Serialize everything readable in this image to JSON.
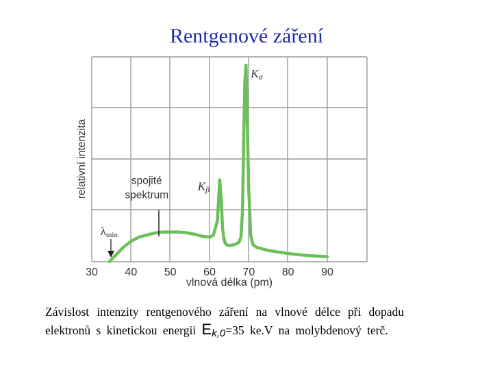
{
  "title": "Rentgenové záření",
  "chart_data": {
    "type": "line",
    "xlabel": "vlnová délka (pm)",
    "ylabel": "relativní intenzita",
    "xlim": [
      30,
      100
    ],
    "ylim": [
      0,
      100
    ],
    "xticks": [
      30,
      40,
      50,
      60,
      70,
      80,
      90
    ],
    "grid": true,
    "color": "#6cbf5a",
    "series": [
      {
        "x": [
          34.5,
          36,
          38,
          40,
          42,
          44,
          46,
          48,
          50,
          52,
          54,
          56,
          58,
          60,
          61,
          62,
          62.6,
          63,
          63.3,
          63.6,
          64,
          64.6,
          65.5,
          66.5,
          67.5,
          68,
          68.4,
          68.7,
          69,
          69.3,
          69.6,
          70,
          70.5,
          71,
          72,
          75,
          80,
          85,
          90
        ],
        "y": [
          0,
          3,
          7,
          10,
          12,
          13,
          14,
          14.5,
          14.5,
          14.5,
          14.2,
          13.5,
          12.5,
          12,
          13,
          20,
          40,
          30,
          17,
          12,
          9,
          8,
          8,
          8.5,
          9.5,
          12,
          25,
          60,
          88,
          96,
          70,
          35,
          13,
          8.5,
          7,
          5.5,
          4,
          3,
          2.5
        ]
      }
    ],
    "annotations": [
      {
        "text": "K",
        "sub": "α",
        "x": 70.5,
        "y": 90
      },
      {
        "text": "K",
        "sub": "β",
        "x": 57,
        "y": 35
      },
      {
        "text": "spojité",
        "x": 44,
        "y": 38
      },
      {
        "text": "spektrum",
        "x": 44,
        "y": 31
      },
      {
        "text": "λ",
        "sub": "min",
        "x": 32.2,
        "y": 13
      }
    ]
  },
  "caption": {
    "part1": "Závislost intenzity rentgenového záření na vlnové délce při dopadu elektronů s kinetickou energii",
    "ek_symbol": "E",
    "ek_sub": "k,0",
    "part2": "=35 ke.V na molybdenový terč."
  }
}
